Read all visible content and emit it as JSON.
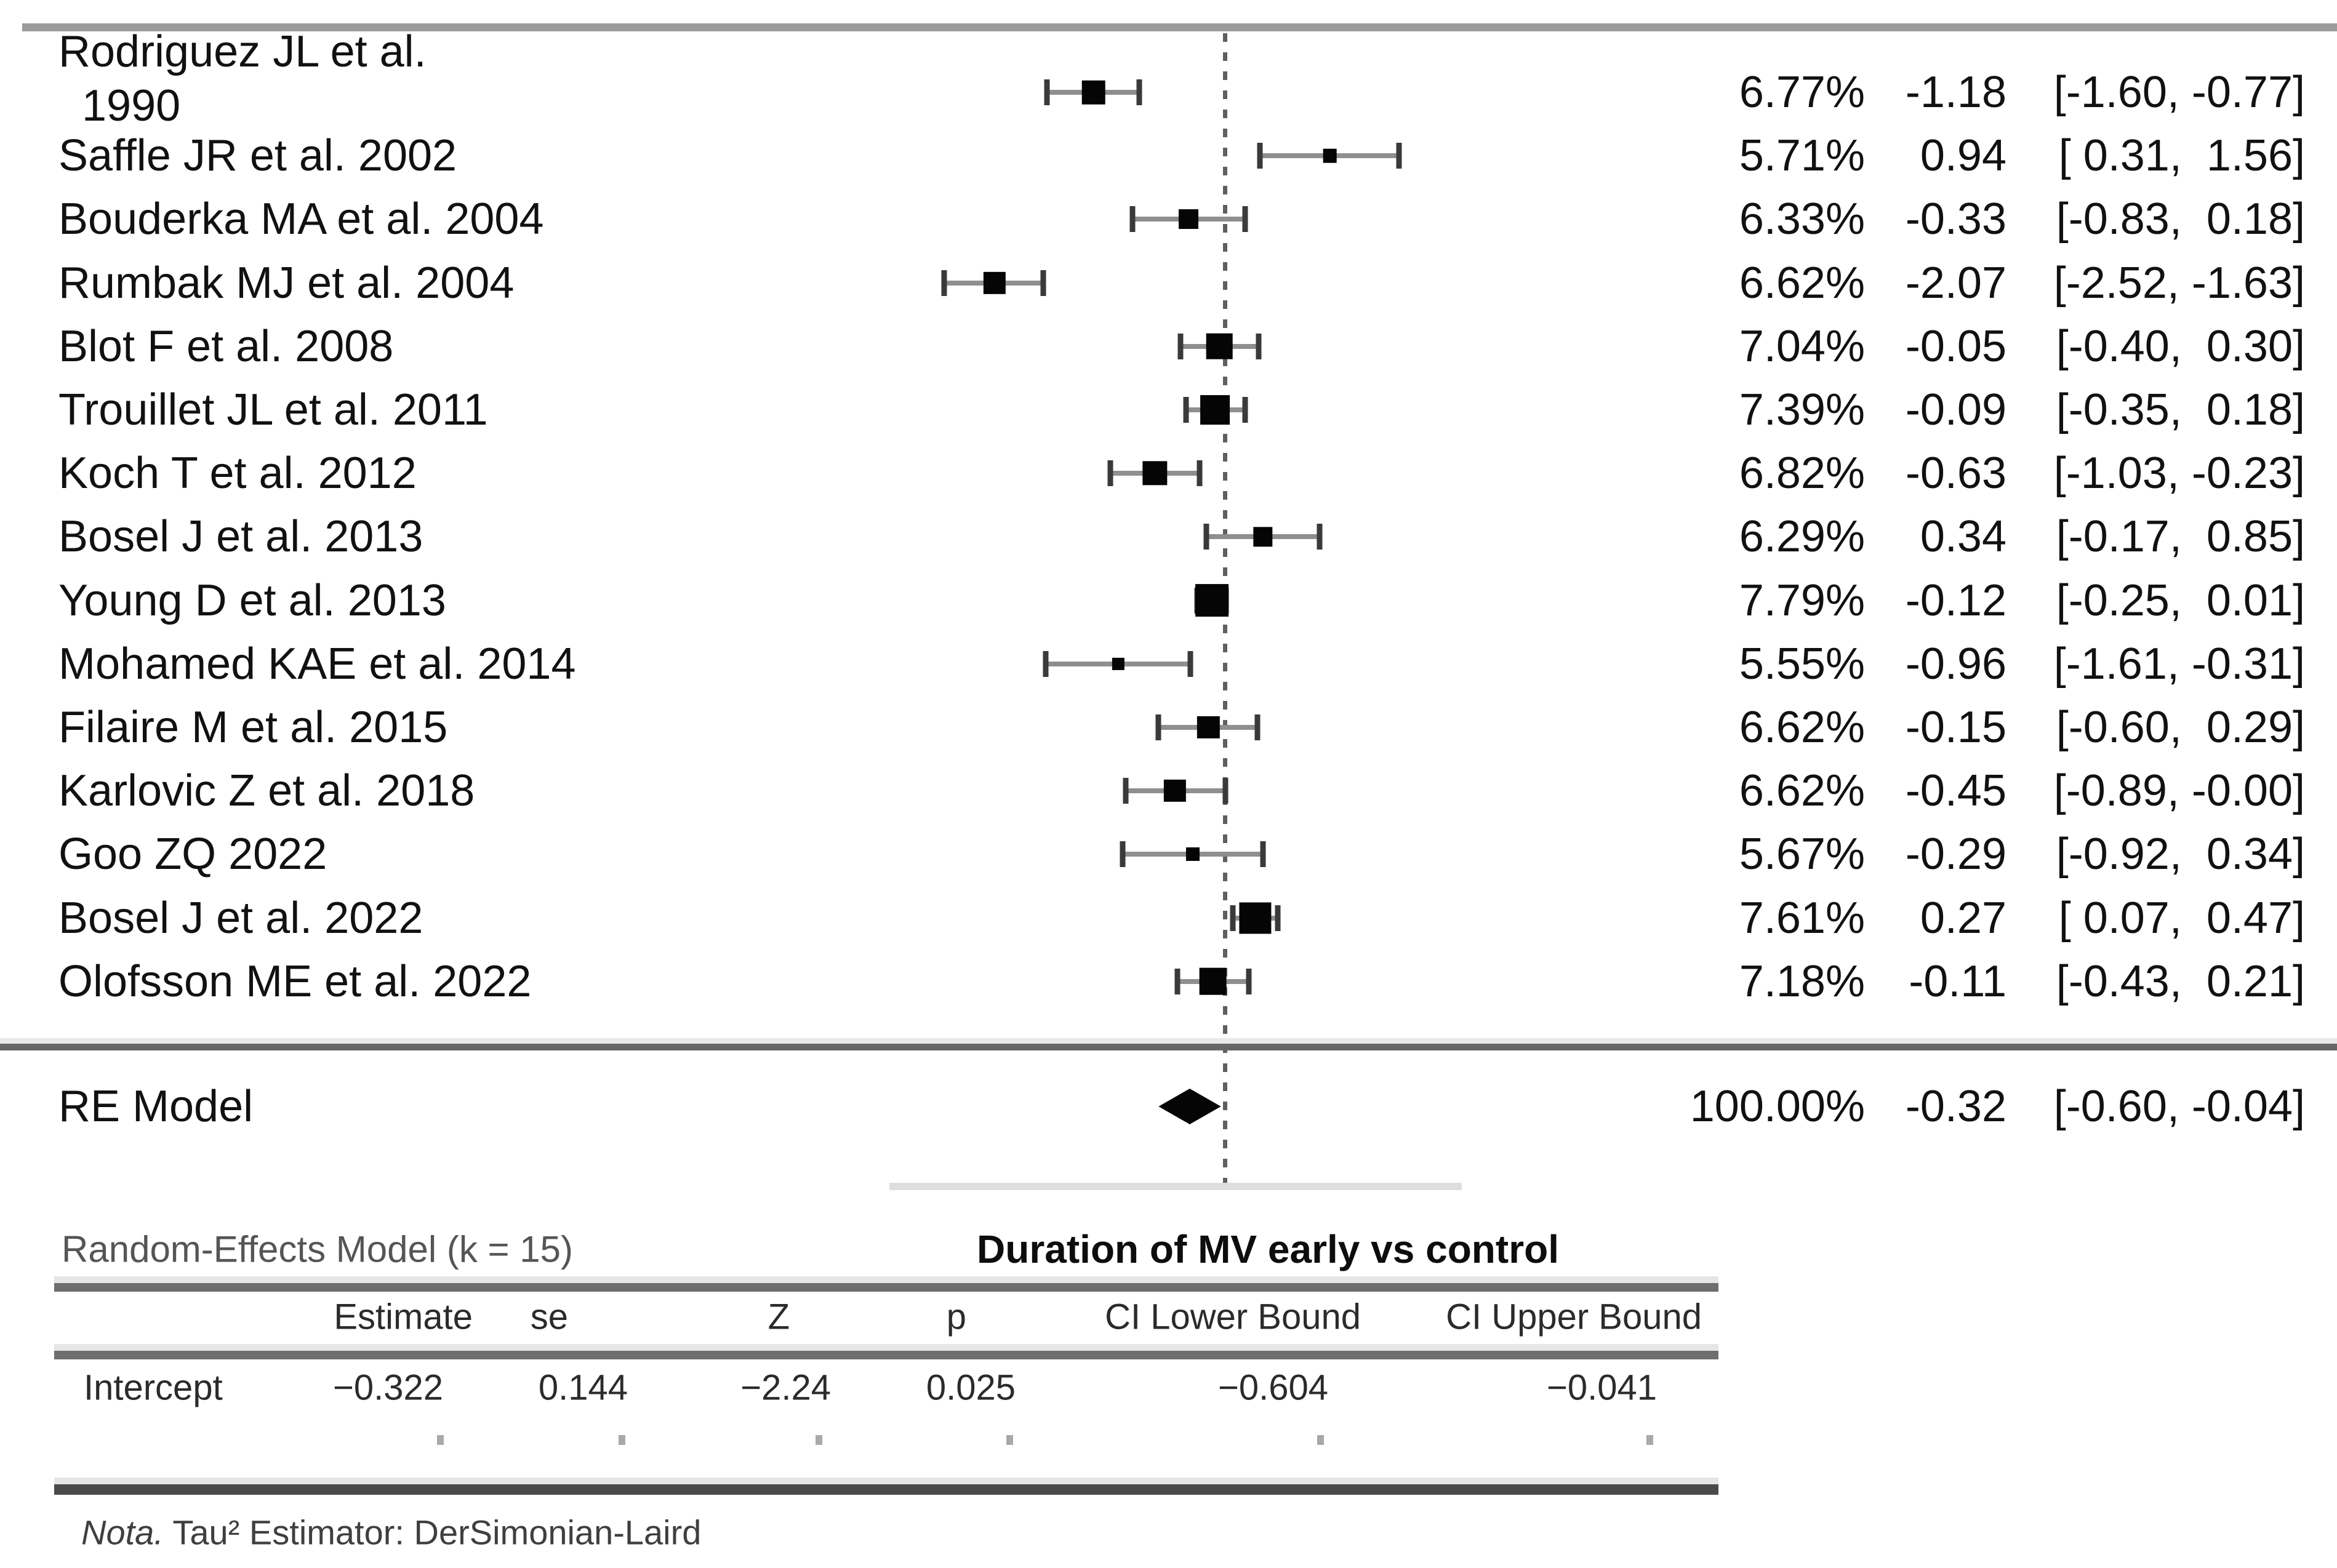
{
  "chart_data": {
    "type": "forest",
    "title": "Duration of MV early vs control",
    "x_axis": {
      "reference_line": 0,
      "tick_labels": [],
      "axis_line_visible": true
    },
    "studies": [
      {
        "label_lines": [
          "Rodriguez JL et al.",
          "1990"
        ],
        "weight_text": "6.77%",
        "weight_pct": 6.77,
        "estimate": -1.18,
        "ci_lower": -1.6,
        "ci_upper": -0.77,
        "estimate_text": "-1.18",
        "ci_text": "[-1.60, -0.77]"
      },
      {
        "label_lines": [
          "Saffle JR et al. 2002"
        ],
        "weight_text": "5.71%",
        "weight_pct": 5.71,
        "estimate": 0.94,
        "ci_lower": 0.31,
        "ci_upper": 1.56,
        "estimate_text": "0.94",
        "ci_text": "[ 0.31,  1.56]"
      },
      {
        "label_lines": [
          "Bouderka MA et al. 2004"
        ],
        "weight_text": "6.33%",
        "weight_pct": 6.33,
        "estimate": -0.33,
        "ci_lower": -0.83,
        "ci_upper": 0.18,
        "estimate_text": "-0.33",
        "ci_text": "[-0.83,  0.18]"
      },
      {
        "label_lines": [
          "Rumbak MJ et al. 2004"
        ],
        "weight_text": "6.62%",
        "weight_pct": 6.62,
        "estimate": -2.07,
        "ci_lower": -2.52,
        "ci_upper": -1.63,
        "estimate_text": "-2.07",
        "ci_text": "[-2.52, -1.63]"
      },
      {
        "label_lines": [
          "Blot F et al. 2008"
        ],
        "weight_text": "7.04%",
        "weight_pct": 7.04,
        "estimate": -0.05,
        "ci_lower": -0.4,
        "ci_upper": 0.3,
        "estimate_text": "-0.05",
        "ci_text": "[-0.40,  0.30]"
      },
      {
        "label_lines": [
          "Trouillet JL et al. 2011"
        ],
        "weight_text": "7.39%",
        "weight_pct": 7.39,
        "estimate": -0.09,
        "ci_lower": -0.35,
        "ci_upper": 0.18,
        "estimate_text": "-0.09",
        "ci_text": "[-0.35,  0.18]"
      },
      {
        "label_lines": [
          "Koch T et al. 2012"
        ],
        "weight_text": "6.82%",
        "weight_pct": 6.82,
        "estimate": -0.63,
        "ci_lower": -1.03,
        "ci_upper": -0.23,
        "estimate_text": "-0.63",
        "ci_text": "[-1.03, -0.23]"
      },
      {
        "label_lines": [
          "Bosel J et al. 2013"
        ],
        "weight_text": "6.29%",
        "weight_pct": 6.29,
        "estimate": 0.34,
        "ci_lower": -0.17,
        "ci_upper": 0.85,
        "estimate_text": "0.34",
        "ci_text": "[-0.17,  0.85]"
      },
      {
        "label_lines": [
          "Young D et al. 2013"
        ],
        "weight_text": "7.79%",
        "weight_pct": 7.79,
        "estimate": -0.12,
        "ci_lower": -0.25,
        "ci_upper": 0.01,
        "estimate_text": "-0.12",
        "ci_text": "[-0.25,  0.01]"
      },
      {
        "label_lines": [
          "Mohamed KAE et al. 2014"
        ],
        "weight_text": "5.55%",
        "weight_pct": 5.55,
        "estimate": -0.96,
        "ci_lower": -1.61,
        "ci_upper": -0.31,
        "estimate_text": "-0.96",
        "ci_text": "[-1.61, -0.31]"
      },
      {
        "label_lines": [
          "Filaire M et al. 2015"
        ],
        "weight_text": "6.62%",
        "weight_pct": 6.62,
        "estimate": -0.15,
        "ci_lower": -0.6,
        "ci_upper": 0.29,
        "estimate_text": "-0.15",
        "ci_text": "[-0.60,  0.29]"
      },
      {
        "label_lines": [
          "Karlovic Z et al. 2018"
        ],
        "weight_text": "6.62%",
        "weight_pct": 6.62,
        "estimate": -0.45,
        "ci_lower": -0.89,
        "ci_upper": -0.0,
        "estimate_text": "-0.45",
        "ci_text": "[-0.89, -0.00]"
      },
      {
        "label_lines": [
          "Goo ZQ 2022"
        ],
        "weight_text": "5.67%",
        "weight_pct": 5.67,
        "estimate": -0.29,
        "ci_lower": -0.92,
        "ci_upper": 0.34,
        "estimate_text": "-0.29",
        "ci_text": "[-0.92,  0.34]"
      },
      {
        "label_lines": [
          "Bosel J et al. 2022"
        ],
        "weight_text": "7.61%",
        "weight_pct": 7.61,
        "estimate": 0.27,
        "ci_lower": 0.07,
        "ci_upper": 0.47,
        "estimate_text": "0.27",
        "ci_text": "[ 0.07,  0.47]"
      },
      {
        "label_lines": [
          "Olofsson ME et al. 2022"
        ],
        "weight_text": "7.18%",
        "weight_pct": 7.18,
        "estimate": -0.11,
        "ci_lower": -0.43,
        "ci_upper": 0.21,
        "estimate_text": "-0.11",
        "ci_text": "[-0.43,  0.21]"
      }
    ],
    "summary": {
      "label": "RE Model",
      "weight_text": "100.00%",
      "weight_pct": 100.0,
      "estimate": -0.32,
      "ci_lower": -0.6,
      "ci_upper": -0.04,
      "estimate_text": "-0.32",
      "ci_text": "[-0.60, -0.04]"
    }
  },
  "table": {
    "heading": "Random-Effects Model (k = 15)",
    "title": "Duration of MV early vs control",
    "headers": [
      "Estimate",
      "se",
      "Z",
      "p",
      "CI Lower Bound",
      "CI Upper Bound"
    ],
    "rows": [
      {
        "label": "Intercept",
        "values": [
          "−0.322",
          "0.144",
          "−2.24",
          "0.025",
          "−0.604",
          "−0.041"
        ]
      }
    ],
    "note_prefix": "Nota.",
    "note_rest": " Tau² Estimator: DerSimonian-Laird"
  }
}
